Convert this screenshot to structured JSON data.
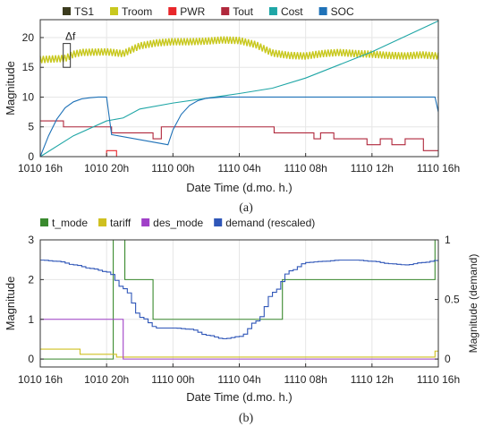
{
  "chart_data": [
    {
      "type": "line",
      "panel_label": "(a)",
      "xlabel": "Date Time (d.mo. h.)",
      "ylabel": "Magnitude",
      "xlim": [
        0,
        24
      ],
      "ylim": [
        0,
        23
      ],
      "x_ticks": [
        {
          "x": 0,
          "label": "1010 16h"
        },
        {
          "x": 4,
          "label": "1010 20h"
        },
        {
          "x": 8,
          "label": "1110 00h"
        },
        {
          "x": 12,
          "label": "1110 04h"
        },
        {
          "x": 16,
          "label": "1110 08h"
        },
        {
          "x": 20,
          "label": "1110 12h"
        },
        {
          "x": 24,
          "label": "1110 16h"
        }
      ],
      "y_ticks": [
        0,
        5,
        10,
        15,
        20
      ],
      "grid": true,
      "legend_position": "top",
      "annotation": "Δf",
      "series": [
        {
          "name": "TS1",
          "color": "#3b3b1e",
          "style": "line",
          "x": [],
          "y": []
        },
        {
          "name": "Troom",
          "color": "#c8c81e",
          "style": "noisy",
          "x": [
            0,
            1.5,
            2,
            2.5,
            4,
            5,
            6,
            7,
            8,
            9,
            10,
            11,
            12,
            13,
            14,
            15,
            16,
            17,
            18,
            19,
            20,
            21,
            22,
            23,
            24
          ],
          "y": [
            16.3,
            16.5,
            17.2,
            17.5,
            17.6,
            17.3,
            18.6,
            19.1,
            19.3,
            19.3,
            19.4,
            19.6,
            19.5,
            18.8,
            17.4,
            17.0,
            16.9,
            17.3,
            17.5,
            17.3,
            17.2,
            17.0,
            16.9,
            17.1,
            16.9
          ]
        },
        {
          "name": "PWR",
          "color": "#e8262a",
          "style": "step",
          "x": [
            0,
            4,
            4.6,
            24
          ],
          "y": [
            0,
            1,
            0,
            0
          ]
        },
        {
          "name": "Tout",
          "color": "#b0283c",
          "style": "step",
          "x": [
            0,
            1.4,
            4.3,
            6.8,
            7.3,
            10.2,
            14.1,
            15.6,
            16.5,
            16.9,
            17.7,
            18.7,
            19.7,
            20.5,
            21.2,
            22.0,
            23.1,
            23.6,
            24
          ],
          "y": [
            6,
            5,
            4,
            3,
            5,
            5,
            4,
            4,
            3,
            4,
            3,
            3,
            2,
            3,
            2,
            3,
            1,
            1,
            1
          ]
        },
        {
          "name": "Cost",
          "color": "#1fa6a6",
          "style": "line",
          "x": [
            0,
            2,
            4,
            5,
            6,
            8,
            10,
            12,
            14,
            16,
            18,
            20,
            22,
            24
          ],
          "y": [
            0,
            3.5,
            6,
            6.5,
            8,
            9,
            9.8,
            10.6,
            11.5,
            13.2,
            15.4,
            17.6,
            20.2,
            22.8
          ]
        },
        {
          "name": "SOC",
          "color": "#1f72b8",
          "style": "line",
          "x": [
            0,
            0.5,
            1,
            1.5,
            2,
            2.5,
            3,
            3.5,
            4,
            4.3,
            7.7,
            8,
            8.5,
            9,
            9.5,
            10,
            11,
            12,
            23.8,
            24
          ],
          "y": [
            0,
            3.5,
            6.3,
            8.2,
            9.2,
            9.7,
            9.9,
            10.0,
            10.0,
            3.7,
            2.0,
            4.5,
            7.1,
            8.6,
            9.4,
            9.8,
            10.0,
            10.0,
            10.0,
            7.5
          ]
        }
      ]
    },
    {
      "type": "line",
      "panel_label": "(b)",
      "xlabel": "Date Time (d.mo. h.)",
      "ylabel": "Magnitude",
      "ylabel_right": "Magnitude (demand)",
      "xlim": [
        0,
        24
      ],
      "ylim": [
        -0.2,
        3
      ],
      "ylim_right": [
        -0.0667,
        1
      ],
      "x_ticks": [
        {
          "x": 0,
          "label": "1010 16h"
        },
        {
          "x": 4,
          "label": "1010 20h"
        },
        {
          "x": 8,
          "label": "1110 00h"
        },
        {
          "x": 12,
          "label": "1110 04h"
        },
        {
          "x": 16,
          "label": "1110 08h"
        },
        {
          "x": 20,
          "label": "1110 12h"
        },
        {
          "x": 24,
          "label": "1110 16h"
        }
      ],
      "y_ticks": [
        0,
        1,
        2,
        3
      ],
      "y_ticks_right": [
        {
          "v": 0,
          "label": "0"
        },
        {
          "v": 0.5,
          "label": "0.5"
        },
        {
          "v": 1,
          "label": "1"
        }
      ],
      "grid": true,
      "legend_position": "top",
      "series": [
        {
          "name": "t_mode",
          "color": "#3a8a2e",
          "style": "step",
          "x": [
            0,
            4.4,
            5.1,
            6.8,
            14.6,
            23.8,
            24
          ],
          "y": [
            0,
            3,
            2,
            1,
            2,
            3,
            3
          ]
        },
        {
          "name": "tariff",
          "color": "#cfc020",
          "style": "step",
          "x": [
            0,
            2.4,
            4.6,
            23.8,
            24
          ],
          "y": [
            0.25,
            0.12,
            0.05,
            0.2,
            0.2
          ]
        },
        {
          "name": "des_mode",
          "color": "#a040c8",
          "style": "step",
          "x": [
            0,
            5.0,
            24
          ],
          "y": [
            1,
            0,
            0
          ]
        },
        {
          "name": "demand (rescaled)",
          "color": "#2f56b8",
          "style": "line",
          "axis": "right",
          "x": [
            0,
            1,
            2,
            3,
            4,
            5,
            6,
            7,
            8,
            9,
            10,
            11,
            12,
            13,
            14,
            15,
            16,
            17,
            18,
            19,
            20,
            21,
            22,
            23,
            24
          ],
          "y": [
            0.83,
            0.82,
            0.79,
            0.76,
            0.73,
            0.59,
            0.35,
            0.26,
            0.26,
            0.25,
            0.2,
            0.17,
            0.19,
            0.32,
            0.56,
            0.74,
            0.81,
            0.82,
            0.83,
            0.83,
            0.82,
            0.8,
            0.79,
            0.81,
            0.83
          ]
        }
      ]
    }
  ]
}
